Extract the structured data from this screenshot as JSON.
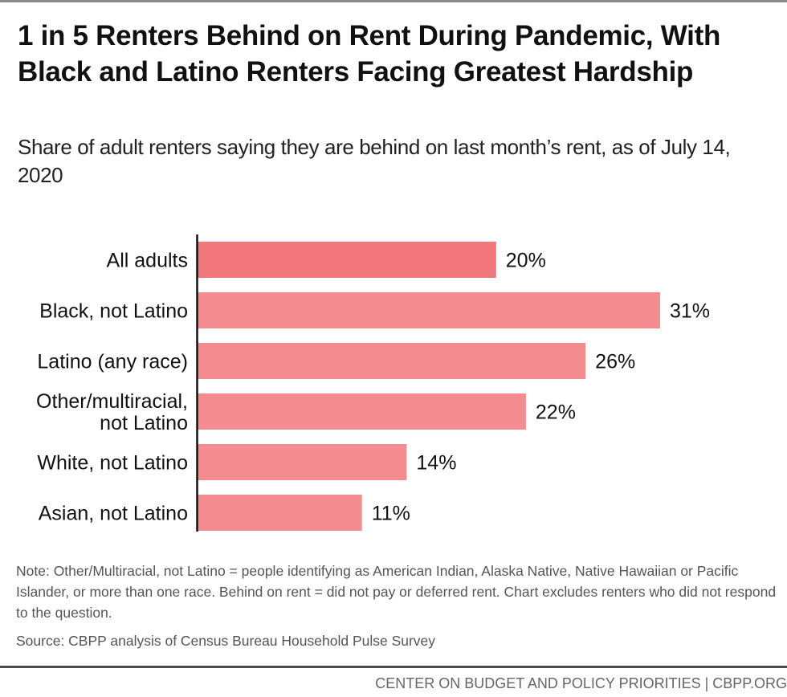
{
  "header": {
    "title": "1 in 5 Renters Behind on Rent During Pandemic, With Black and Latino Renters Facing Greatest Hardship",
    "subtitle": "Share of adult renters saying they are behind on last month’s rent, as of July 14, 2020"
  },
  "chart_data": {
    "type": "bar",
    "orientation": "horizontal",
    "title": "1 in 5 Renters Behind on Rent During Pandemic, With Black and Latino Renters Facing Greatest Hardship",
    "subtitle": "Share of adult renters saying they are behind on last month’s rent, as of July 14, 2020",
    "xlabel": "",
    "ylabel": "",
    "categories": [
      [
        "All adults"
      ],
      [
        "Black, not Latino"
      ],
      [
        "Latino (any race)"
      ],
      [
        "Other/multiracial,",
        "not Latino"
      ],
      [
        "White, not Latino"
      ],
      [
        "Asian, not Latino"
      ]
    ],
    "values": [
      20,
      31,
      26,
      22,
      14,
      11
    ],
    "value_labels": [
      "20%",
      "31%",
      "26%",
      "22%",
      "14%",
      "11%"
    ],
    "unit": "%",
    "xlim": [
      0,
      31
    ],
    "grid": false,
    "legend": "none",
    "colors": {
      "highlight": "#f2777c",
      "default": "#f58d90",
      "axis": "#111111"
    },
    "highlight_index": 0
  },
  "notes": {
    "note": "Note: Other/Multiracial, not Latino = people identifying as American Indian, Alaska Native, Native Hawaiian or Pacific Islander, or more than one race. Behind on rent = did not pay or deferred rent. Chart excludes renters who did not respond to the question.",
    "source": "Source: CBPP analysis of Census Bureau Household Pulse Survey"
  },
  "footer": {
    "credit": "CENTER ON BUDGET AND POLICY PRIORITIES | CBPP.ORG"
  }
}
